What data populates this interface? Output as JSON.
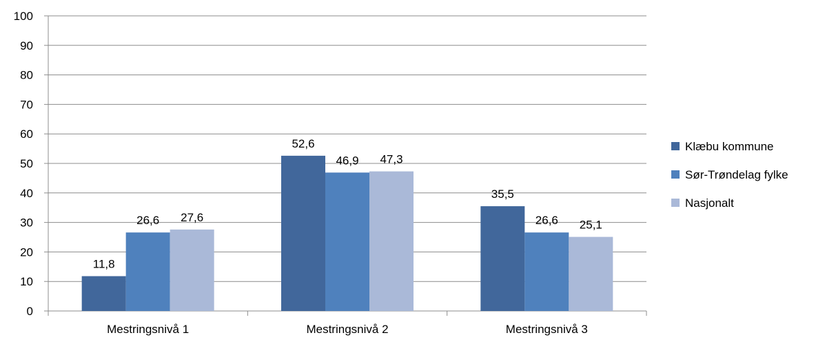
{
  "chart_data": {
    "type": "bar",
    "title": "",
    "xlabel": "",
    "ylabel": "",
    "categories": [
      "Mestringsnivå 1",
      "Mestringsnivå 2",
      "Mestringsnivå 3"
    ],
    "series": [
      {
        "name": "Klæbu kommune",
        "values": [
          11.8,
          52.6,
          35.5
        ],
        "labels": [
          "11,8",
          "52,6",
          "35,5"
        ],
        "color": "#41679B"
      },
      {
        "name": "Sør-Trøndelag fylke",
        "values": [
          26.6,
          46.9,
          26.6
        ],
        "labels": [
          "26,6",
          "46,9",
          "26,6"
        ],
        "color": "#4F81BD"
      },
      {
        "name": "Nasjonalt",
        "values": [
          27.6,
          47.3,
          25.1
        ],
        "labels": [
          "27,6",
          "47,3",
          "25,1"
        ],
        "color": "#AAB9D8"
      }
    ],
    "ylim": [
      0,
      100
    ],
    "yticks": [
      "0",
      "10",
      "20",
      "30",
      "40",
      "50",
      "60",
      "70",
      "80",
      "90",
      "100"
    ],
    "grid": true,
    "gridColor": "#8C8C8C",
    "legend_position": "right"
  }
}
